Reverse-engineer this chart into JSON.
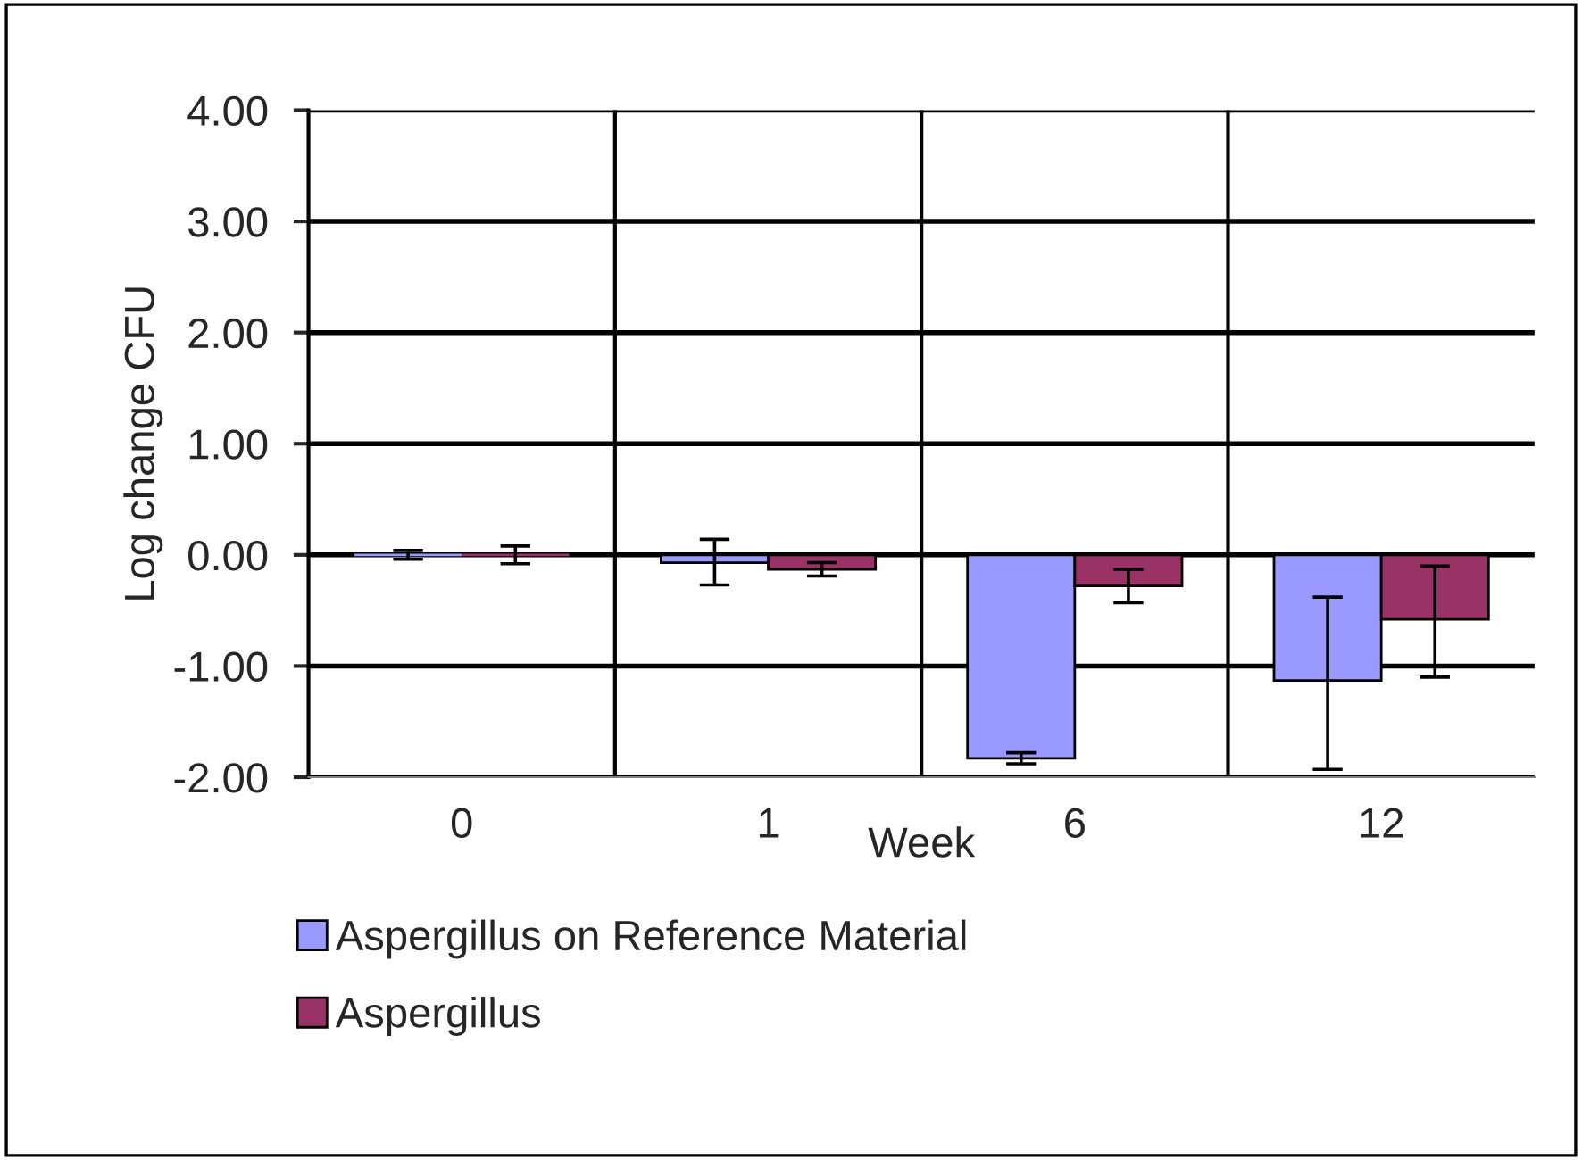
{
  "chart_data": {
    "type": "bar",
    "xlabel": "Week",
    "ylabel": "Log change CFU",
    "categories": [
      "0",
      "1",
      "6",
      "12"
    ],
    "series": [
      {
        "name": "Aspergillus on Reference Material",
        "color": "#9999ff",
        "values": [
          0.0,
          -0.07,
          -1.83,
          -1.13
        ],
        "errors": [
          0.04,
          [
            -0.27,
            0.14
          ],
          0.05,
          [
            -1.93,
            -0.38
          ]
        ]
      },
      {
        "name": "Aspergillus",
        "color": "#993366",
        "values": [
          0.0,
          -0.13,
          -0.28,
          -0.58
        ],
        "errors": [
          0.08,
          0.06,
          0.15,
          [
            -1.1,
            -0.1
          ]
        ]
      }
    ],
    "ylim": [
      -2,
      4
    ],
    "yticks": [
      {
        "value": -2,
        "label": "-2.00"
      },
      {
        "value": -1,
        "label": "-1.00"
      },
      {
        "value": 0,
        "label": "0.00"
      },
      {
        "value": 1,
        "label": "1.00"
      },
      {
        "value": 2,
        "label": "2.00"
      },
      {
        "value": 3,
        "label": "3.00"
      },
      {
        "value": 4,
        "label": "4.00"
      }
    ],
    "grid": true,
    "legend": "bottom"
  }
}
